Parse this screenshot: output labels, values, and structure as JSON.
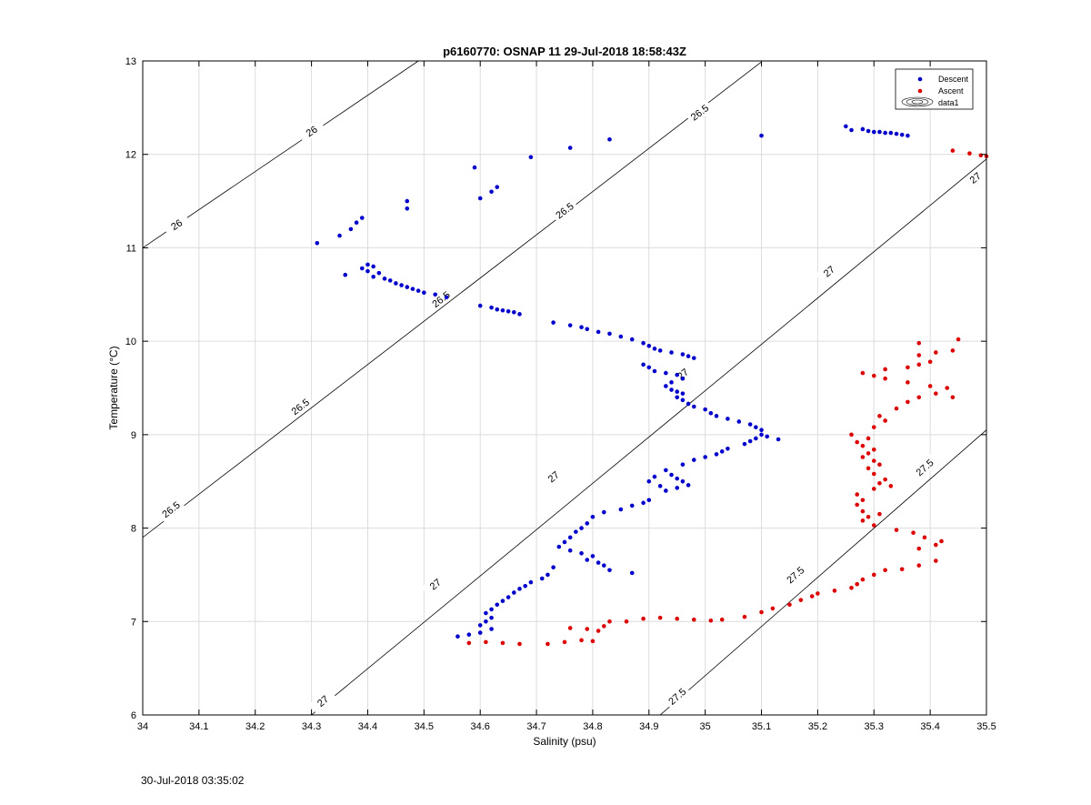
{
  "chart_data": {
    "type": "scatter",
    "title": "p6160770: OSNAP 11 29-Jul-2018 18:58:43Z",
    "xlabel": "Salinity (psu)",
    "ylabel": "Temperature (°C)",
    "xlim": [
      34,
      35.5
    ],
    "ylim": [
      6,
      13
    ],
    "x_ticks": [
      "34",
      "34.1",
      "34.2",
      "34.3",
      "34.4",
      "34.5",
      "34.6",
      "34.7",
      "34.8",
      "34.9",
      "35",
      "35.1",
      "35.2",
      "35.3",
      "35.4",
      "35.5"
    ],
    "y_ticks": [
      "6",
      "7",
      "8",
      "9",
      "10",
      "11",
      "12",
      "13"
    ],
    "grid": true,
    "legend_position": "top-right",
    "legend": [
      "Descent",
      "Ascent",
      "data1"
    ],
    "colors": {
      "descent": "#0000cc",
      "ascent": "#dd0000",
      "contour": "#000000",
      "grid": "#dcdcdc"
    },
    "contours": [
      {
        "label": "26",
        "points": [
          [
            34,
            11
          ],
          [
            34.49,
            13
          ]
        ],
        "label_positions": [
          [
            34.06,
            11.25
          ],
          [
            34.3,
            12.25
          ]
        ]
      },
      {
        "label": "26.5",
        "points": [
          [
            34,
            7.9
          ],
          [
            35.1,
            12.99
          ]
        ],
        "label_positions": [
          [
            34.05,
            8.2
          ],
          [
            34.28,
            9.3
          ],
          [
            34.53,
            10.45
          ],
          [
            34.75,
            11.4
          ],
          [
            34.99,
            12.45
          ]
        ]
      },
      {
        "label": "27",
        "points": [
          [
            34.3,
            6
          ],
          [
            35.5,
            11.95
          ]
        ],
        "label_positions": [
          [
            34.32,
            6.15
          ],
          [
            34.52,
            7.4
          ],
          [
            34.73,
            8.55
          ],
          [
            34.96,
            9.65
          ],
          [
            35.22,
            10.75
          ],
          [
            35.48,
            11.75
          ]
        ]
      },
      {
        "label": "27.5",
        "points": [
          [
            34.92,
            6
          ],
          [
            35.5,
            9.05
          ]
        ],
        "label_positions": [
          [
            34.95,
            6.2
          ],
          [
            35.16,
            7.5
          ],
          [
            35.39,
            8.65
          ]
        ]
      }
    ],
    "series": [
      {
        "name": "Descent",
        "points": [
          [
            34.31,
            11.05
          ],
          [
            34.35,
            11.13
          ],
          [
            34.37,
            11.2
          ],
          [
            34.38,
            11.27
          ],
          [
            34.39,
            11.32
          ],
          [
            34.47,
            11.5
          ],
          [
            34.47,
            11.42
          ],
          [
            34.59,
            11.86
          ],
          [
            34.6,
            11.53
          ],
          [
            34.62,
            11.6
          ],
          [
            34.63,
            11.65
          ],
          [
            34.69,
            11.97
          ],
          [
            34.76,
            12.07
          ],
          [
            34.83,
            12.16
          ],
          [
            35.1,
            12.2
          ],
          [
            35.25,
            12.3
          ],
          [
            35.26,
            12.26
          ],
          [
            35.28,
            12.27
          ],
          [
            35.29,
            12.25
          ],
          [
            35.3,
            12.24
          ],
          [
            35.31,
            12.24
          ],
          [
            35.32,
            12.23
          ],
          [
            35.33,
            12.23
          ],
          [
            35.34,
            12.22
          ],
          [
            35.35,
            12.21
          ],
          [
            35.36,
            12.2
          ],
          [
            34.36,
            10.71
          ],
          [
            34.39,
            10.78
          ],
          [
            34.4,
            10.82
          ],
          [
            34.41,
            10.8
          ],
          [
            34.4,
            10.75
          ],
          [
            34.42,
            10.73
          ],
          [
            34.41,
            10.69
          ],
          [
            34.43,
            10.67
          ],
          [
            34.44,
            10.65
          ],
          [
            34.45,
            10.62
          ],
          [
            34.46,
            10.6
          ],
          [
            34.47,
            10.58
          ],
          [
            34.48,
            10.56
          ],
          [
            34.49,
            10.54
          ],
          [
            34.5,
            10.52
          ],
          [
            34.52,
            10.5
          ],
          [
            34.54,
            10.47
          ],
          [
            34.6,
            10.38
          ],
          [
            34.62,
            10.36
          ],
          [
            34.63,
            10.34
          ],
          [
            34.64,
            10.33
          ],
          [
            34.65,
            10.32
          ],
          [
            34.66,
            10.31
          ],
          [
            34.67,
            10.29
          ],
          [
            34.73,
            10.2
          ],
          [
            34.76,
            10.17
          ],
          [
            34.78,
            10.15
          ],
          [
            34.79,
            10.13
          ],
          [
            34.81,
            10.1
          ],
          [
            34.83,
            10.08
          ],
          [
            34.85,
            10.05
          ],
          [
            34.87,
            10.02
          ],
          [
            34.89,
            9.98
          ],
          [
            34.9,
            9.95
          ],
          [
            34.91,
            9.92
          ],
          [
            34.92,
            9.9
          ],
          [
            34.94,
            9.88
          ],
          [
            34.96,
            9.86
          ],
          [
            34.97,
            9.84
          ],
          [
            34.98,
            9.82
          ],
          [
            34.89,
            9.75
          ],
          [
            34.9,
            9.72
          ],
          [
            34.91,
            9.68
          ],
          [
            34.93,
            9.66
          ],
          [
            34.95,
            9.64
          ],
          [
            34.96,
            9.6
          ],
          [
            34.94,
            9.56
          ],
          [
            34.93,
            9.52
          ],
          [
            34.94,
            9.48
          ],
          [
            34.95,
            9.46
          ],
          [
            34.96,
            9.44
          ],
          [
            34.95,
            9.4
          ],
          [
            34.96,
            9.37
          ],
          [
            34.97,
            9.33
          ],
          [
            34.98,
            9.3
          ],
          [
            35.0,
            9.27
          ],
          [
            35.01,
            9.23
          ],
          [
            35.02,
            9.2
          ],
          [
            35.04,
            9.17
          ],
          [
            35.06,
            9.14
          ],
          [
            35.08,
            9.11
          ],
          [
            35.09,
            9.08
          ],
          [
            35.1,
            9.05
          ],
          [
            35.1,
            9.0
          ],
          [
            35.09,
            8.96
          ],
          [
            35.08,
            8.93
          ],
          [
            35.13,
            8.95
          ],
          [
            35.11,
            8.98
          ],
          [
            35.07,
            8.9
          ],
          [
            35.04,
            8.85
          ],
          [
            35.03,
            8.82
          ],
          [
            35.02,
            8.79
          ],
          [
            35.0,
            8.76
          ],
          [
            34.98,
            8.73
          ],
          [
            34.96,
            8.68
          ],
          [
            34.93,
            8.62
          ],
          [
            34.94,
            8.57
          ],
          [
            34.95,
            8.53
          ],
          [
            34.96,
            8.5
          ],
          [
            34.97,
            8.46
          ],
          [
            34.95,
            8.43
          ],
          [
            34.93,
            8.4
          ],
          [
            34.91,
            8.55
          ],
          [
            34.9,
            8.5
          ],
          [
            34.92,
            8.45
          ],
          [
            34.9,
            8.3
          ],
          [
            34.89,
            8.27
          ],
          [
            34.87,
            8.24
          ],
          [
            34.85,
            8.2
          ],
          [
            34.82,
            8.17
          ],
          [
            34.8,
            8.12
          ],
          [
            34.79,
            8.05
          ],
          [
            34.78,
            8.0
          ],
          [
            34.77,
            7.96
          ],
          [
            34.76,
            7.9
          ],
          [
            34.75,
            7.85
          ],
          [
            34.74,
            7.8
          ],
          [
            34.76,
            7.76
          ],
          [
            34.78,
            7.73
          ],
          [
            34.8,
            7.7
          ],
          [
            34.79,
            7.66
          ],
          [
            34.81,
            7.63
          ],
          [
            34.82,
            7.6
          ],
          [
            34.83,
            7.55
          ],
          [
            34.87,
            7.52
          ],
          [
            34.73,
            7.58
          ],
          [
            34.72,
            7.5
          ],
          [
            34.71,
            7.46
          ],
          [
            34.69,
            7.42
          ],
          [
            34.68,
            7.38
          ],
          [
            34.67,
            7.35
          ],
          [
            34.66,
            7.31
          ],
          [
            34.65,
            7.26
          ],
          [
            34.64,
            7.22
          ],
          [
            34.63,
            7.18
          ],
          [
            34.62,
            7.13
          ],
          [
            34.61,
            7.09
          ],
          [
            34.62,
            7.04
          ],
          [
            34.61,
            7.0
          ],
          [
            34.6,
            6.96
          ],
          [
            34.62,
            6.92
          ],
          [
            34.6,
            6.88
          ],
          [
            34.58,
            6.86
          ],
          [
            34.56,
            6.84
          ]
        ]
      },
      {
        "name": "Ascent",
        "points": [
          [
            35.44,
            12.04
          ],
          [
            35.47,
            12.01
          ],
          [
            35.49,
            11.99
          ],
          [
            35.5,
            11.98
          ],
          [
            34.58,
            6.77
          ],
          [
            34.61,
            6.78
          ],
          [
            34.64,
            6.77
          ],
          [
            34.67,
            6.76
          ],
          [
            34.72,
            6.76
          ],
          [
            34.75,
            6.78
          ],
          [
            34.78,
            6.8
          ],
          [
            34.8,
            6.79
          ],
          [
            34.76,
            6.93
          ],
          [
            34.79,
            6.92
          ],
          [
            34.81,
            6.9
          ],
          [
            34.82,
            6.95
          ],
          [
            34.83,
            7.0
          ],
          [
            34.86,
            7.0
          ],
          [
            34.89,
            7.03
          ],
          [
            34.92,
            7.04
          ],
          [
            34.95,
            7.03
          ],
          [
            34.98,
            7.02
          ],
          [
            35.01,
            7.01
          ],
          [
            35.03,
            7.02
          ],
          [
            35.07,
            7.05
          ],
          [
            35.1,
            7.1
          ],
          [
            35.12,
            7.14
          ],
          [
            35.15,
            7.18
          ],
          [
            35.17,
            7.23
          ],
          [
            35.19,
            7.27
          ],
          [
            35.2,
            7.3
          ],
          [
            35.23,
            7.33
          ],
          [
            35.26,
            7.36
          ],
          [
            35.27,
            7.4
          ],
          [
            35.28,
            7.45
          ],
          [
            35.3,
            7.5
          ],
          [
            35.32,
            7.55
          ],
          [
            35.35,
            7.56
          ],
          [
            35.38,
            7.6
          ],
          [
            35.41,
            7.65
          ],
          [
            35.38,
            7.78
          ],
          [
            35.41,
            7.82
          ],
          [
            35.42,
            7.86
          ],
          [
            35.39,
            7.9
          ],
          [
            35.37,
            7.95
          ],
          [
            35.34,
            7.98
          ],
          [
            35.3,
            8.03
          ],
          [
            35.28,
            8.08
          ],
          [
            35.29,
            8.12
          ],
          [
            35.31,
            8.15
          ],
          [
            35.28,
            8.18
          ],
          [
            35.27,
            8.25
          ],
          [
            35.28,
            8.3
          ],
          [
            35.27,
            8.36
          ],
          [
            35.3,
            8.42
          ],
          [
            35.33,
            8.45
          ],
          [
            35.31,
            8.48
          ],
          [
            35.32,
            8.52
          ],
          [
            35.3,
            8.58
          ],
          [
            35.29,
            8.64
          ],
          [
            35.31,
            8.68
          ],
          [
            35.3,
            8.72
          ],
          [
            35.28,
            8.76
          ],
          [
            35.29,
            8.8
          ],
          [
            35.3,
            8.84
          ],
          [
            35.28,
            8.88
          ],
          [
            35.27,
            8.92
          ],
          [
            35.29,
            8.96
          ],
          [
            35.26,
            9.0
          ],
          [
            35.3,
            9.08
          ],
          [
            35.32,
            9.15
          ],
          [
            35.31,
            9.2
          ],
          [
            35.34,
            9.28
          ],
          [
            35.36,
            9.35
          ],
          [
            35.38,
            9.4
          ],
          [
            35.41,
            9.44
          ],
          [
            35.44,
            9.4
          ],
          [
            35.43,
            9.5
          ],
          [
            35.4,
            9.52
          ],
          [
            35.36,
            9.56
          ],
          [
            35.32,
            9.6
          ],
          [
            35.3,
            9.63
          ],
          [
            35.28,
            9.66
          ],
          [
            35.32,
            9.7
          ],
          [
            35.36,
            9.72
          ],
          [
            35.38,
            9.75
          ],
          [
            35.4,
            9.78
          ],
          [
            35.38,
            9.85
          ],
          [
            35.41,
            9.88
          ],
          [
            35.38,
            9.98
          ],
          [
            35.45,
            10.02
          ],
          [
            35.44,
            9.9
          ]
        ]
      }
    ]
  },
  "footer": {
    "timestamp": "30-Jul-2018 03:35:02"
  }
}
